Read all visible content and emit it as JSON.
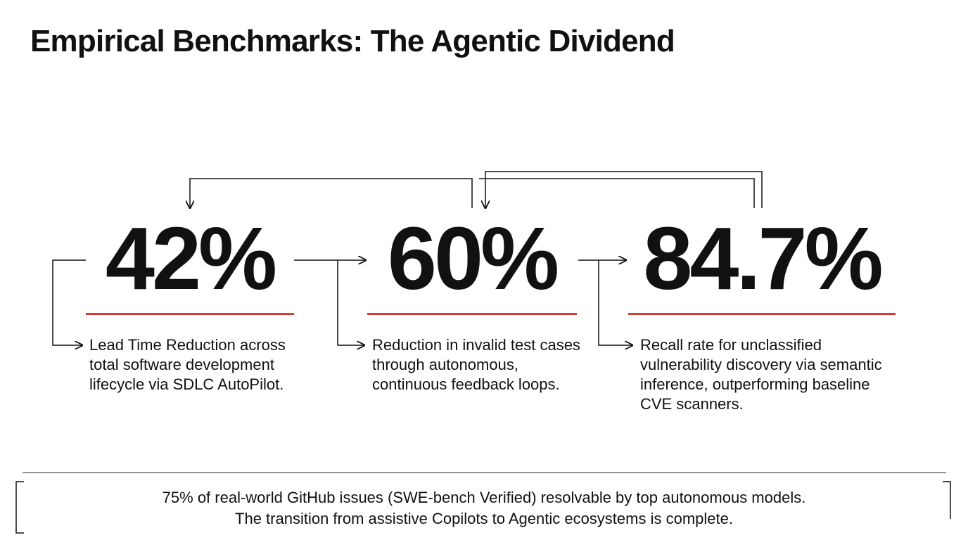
{
  "title": "Empirical Benchmarks: The Agentic Dividend",
  "accent_color": "#d63a34",
  "stats": [
    {
      "value": "42%",
      "description": "Lead Time Reduction across total software development lifecycle via SDLC AutoPilot."
    },
    {
      "value": "60%",
      "description": "Reduction in invalid test cases through autonomous, continuous feedback loops."
    },
    {
      "value": "84.7%",
      "description": "Recall rate for unclassified vulnerability discovery via semantic inference, outperforming baseline CVE scanners."
    }
  ],
  "footer": {
    "line1": "75% of real-world GitHub issues (SWE-bench Verified) resolvable by top autonomous models.",
    "line2": "The transition from assistive Copilots to Agentic ecosystems is complete."
  }
}
